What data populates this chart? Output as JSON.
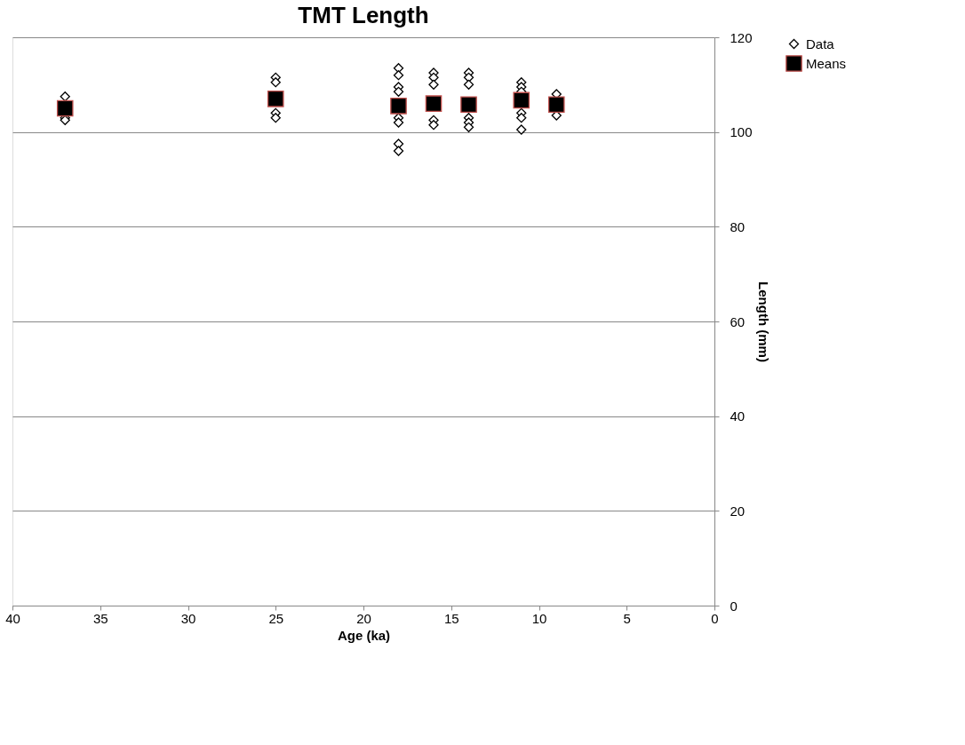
{
  "chart_data": {
    "type": "scatter",
    "title": "TMT Length",
    "xlabel": "Age (ka)",
    "ylabel": "Length (mm)",
    "xlim": [
      40,
      0
    ],
    "xticks": [
      40,
      35,
      30,
      25,
      20,
      15,
      10,
      5,
      0
    ],
    "ylim": [
      0,
      120
    ],
    "yticks": [
      0,
      20,
      40,
      60,
      80,
      100,
      120
    ],
    "grid": "y",
    "legend": "right",
    "series": [
      {
        "name": "Data",
        "color": "#000000",
        "marker": "diamond",
        "x": [
          37,
          37,
          37,
          25,
          25,
          25,
          25,
          18,
          18,
          18,
          18,
          18,
          18,
          18,
          18,
          16,
          16,
          16,
          16,
          16,
          14,
          14,
          14,
          14,
          14,
          14,
          11,
          11,
          11,
          11,
          11,
          11,
          9,
          9
        ],
        "values": [
          107.5,
          103,
          102.5,
          111.5,
          110.5,
          104,
          103,
          113.5,
          112,
          109.5,
          108.5,
          103,
          102,
          97.5,
          96,
          112.5,
          111.5,
          110,
          102.5,
          101.5,
          112.5,
          111.5,
          110,
          103,
          102,
          101,
          110.5,
          109.5,
          108.5,
          104,
          103,
          100.5,
          108,
          103.5
        ]
      },
      {
        "name": "Means",
        "color": "#000000",
        "marker": "square",
        "x": [
          37,
          25,
          18,
          16,
          14,
          11,
          9
        ],
        "values": [
          105,
          107,
          105.5,
          106,
          105.8,
          106.7,
          105.8
        ]
      }
    ]
  }
}
